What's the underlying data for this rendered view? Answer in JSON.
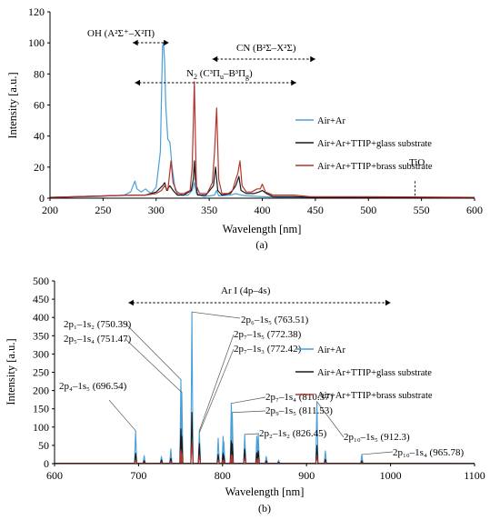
{
  "chart_data": [
    {
      "id": "a",
      "type": "line",
      "caption": "(a)",
      "xlabel": "Wavelength [nm]",
      "ylabel": "Intensity [a.u.]",
      "xlim": [
        200,
        600
      ],
      "ylim": [
        0,
        120
      ],
      "xticks": [
        200,
        250,
        300,
        350,
        400,
        450,
        500,
        550,
        600
      ],
      "yticks": [
        0,
        20,
        40,
        60,
        80,
        100,
        120
      ],
      "legend_position": "right",
      "series": [
        {
          "name": "Air+Ar",
          "color": "#4a9fd8",
          "points": [
            [
              200,
              0.5
            ],
            [
              240,
              1
            ],
            [
              270,
              2
            ],
            [
              276,
              4
            ],
            [
              280,
              11
            ],
            [
              282,
              6
            ],
            [
              286,
              4
            ],
            [
              290,
              6
            ],
            [
              295,
              3
            ],
            [
              300,
              7
            ],
            [
              304,
              30
            ],
            [
              306,
              98
            ],
            [
              307,
              100
            ],
            [
              308,
              88
            ],
            [
              309,
              60
            ],
            [
              311,
              38
            ],
            [
              313,
              36
            ],
            [
              315,
              20
            ],
            [
              318,
              5
            ],
            [
              325,
              2
            ],
            [
              330,
              2
            ],
            [
              334,
              5
            ],
            [
              336,
              10
            ],
            [
              338,
              3
            ],
            [
              345,
              1
            ],
            [
              355,
              2
            ],
            [
              357,
              5
            ],
            [
              359,
              1.5
            ],
            [
              370,
              2
            ],
            [
              375,
              3
            ],
            [
              380,
              2
            ],
            [
              385,
              1.5
            ],
            [
              400,
              1
            ],
            [
              420,
              0.5
            ],
            [
              450,
              0.3
            ],
            [
              500,
              0.3
            ],
            [
              550,
              0.2
            ],
            [
              600,
              0.2
            ]
          ]
        },
        {
          "name": "Air+Ar+TTIP+glass substrate",
          "color": "#1a1a1a",
          "points": [
            [
              200,
              0.5
            ],
            [
              280,
              2
            ],
            [
              290,
              2
            ],
            [
              300,
              4
            ],
            [
              306,
              8
            ],
            [
              308,
              10
            ],
            [
              310,
              5
            ],
            [
              313,
              8
            ],
            [
              316,
              5
            ],
            [
              320,
              2
            ],
            [
              326,
              2
            ],
            [
              333,
              5
            ],
            [
              335,
              12
            ],
            [
              336,
              24
            ],
            [
              337,
              12
            ],
            [
              339,
              2
            ],
            [
              347,
              2
            ],
            [
              354,
              8
            ],
            [
              356,
              20
            ],
            [
              358,
              5
            ],
            [
              362,
              2
            ],
            [
              370,
              3
            ],
            [
              375,
              8
            ],
            [
              378,
              14
            ],
            [
              380,
              5
            ],
            [
              385,
              3
            ],
            [
              392,
              3
            ],
            [
              397,
              4
            ],
            [
              400,
              5
            ],
            [
              404,
              3
            ],
            [
              410,
              1
            ],
            [
              430,
              1
            ],
            [
              450,
              0.5
            ],
            [
              500,
              0.4
            ],
            [
              600,
              0.3
            ]
          ]
        },
        {
          "name": "Air+Ar+TTIP+brass substrate",
          "color": "#b5352a",
          "points": [
            [
              200,
              0.5
            ],
            [
              280,
              2
            ],
            [
              290,
              2
            ],
            [
              300,
              3
            ],
            [
              305,
              5
            ],
            [
              308,
              8
            ],
            [
              311,
              5
            ],
            [
              314,
              24
            ],
            [
              316,
              10
            ],
            [
              320,
              3
            ],
            [
              326,
              3
            ],
            [
              332,
              5
            ],
            [
              334,
              20
            ],
            [
              336,
              75
            ],
            [
              337,
              40
            ],
            [
              338,
              8
            ],
            [
              341,
              3
            ],
            [
              348,
              3
            ],
            [
              353,
              10
            ],
            [
              355,
              30
            ],
            [
              357,
              58
            ],
            [
              359,
              12
            ],
            [
              362,
              3
            ],
            [
              368,
              3
            ],
            [
              372,
              5
            ],
            [
              375,
              12
            ],
            [
              377,
              16
            ],
            [
              379,
              24
            ],
            [
              381,
              8
            ],
            [
              385,
              4
            ],
            [
              390,
              4
            ],
            [
              395,
              6
            ],
            [
              398,
              6
            ],
            [
              400,
              9
            ],
            [
              403,
              4
            ],
            [
              410,
              2
            ],
            [
              420,
              2
            ],
            [
              430,
              2
            ],
            [
              445,
              1
            ],
            [
              500,
              1
            ],
            [
              600,
              0.5
            ]
          ]
        }
      ],
      "annotations": {
        "oh_label": "OH (A²Σ⁺–X²Π)",
        "cn_label": "CN (B²Σ–X²Σ)",
        "n2_label_main": "N",
        "n2_label_sub": "2",
        "n2_label_rest": " (C³Π",
        "n2_label_sub2": "u",
        "n2_label_mid": "–B³Π",
        "n2_label_sub3": "g",
        "n2_label_end": ")",
        "tio_label": "TiO",
        "oh_range": [
          278,
          312
        ],
        "cn_range": [
          353,
          450
        ],
        "n2_range": [
          280,
          432
        ],
        "tio_x": 544,
        "tio_top": 11
      }
    },
    {
      "id": "b",
      "type": "line",
      "caption": "(b)",
      "xlabel": "Wavelength [nm]",
      "ylabel": "Intensity [a.u.]",
      "xlim": [
        600,
        1100
      ],
      "ylim": [
        0,
        500
      ],
      "xticks": [
        600,
        700,
        800,
        900,
        1000,
        1100
      ],
      "yticks": [
        0,
        50,
        100,
        150,
        200,
        250,
        300,
        350,
        400,
        450,
        500
      ],
      "legend_position": "right",
      "series": [
        {
          "name": "Air+Ar",
          "color": "#4a9fd8",
          "lines": [
            [
              696.54,
              90
            ],
            [
              706.7,
              22
            ],
            [
              727.3,
              20
            ],
            [
              738.4,
              40
            ],
            [
              750.39,
              230
            ],
            [
              751.47,
              195
            ],
            [
              763.51,
              415
            ],
            [
              772.38,
              90
            ],
            [
              772.42,
              85
            ],
            [
              794.8,
              70
            ],
            [
              800.6,
              75
            ],
            [
              801.5,
              60
            ],
            [
              810.37,
              165
            ],
            [
              811.53,
              140
            ],
            [
              826.45,
              80
            ],
            [
              840.8,
              75
            ],
            [
              842.5,
              80
            ],
            [
              852.1,
              20
            ],
            [
              866.8,
              10
            ],
            [
              912.3,
              170
            ],
            [
              922.4,
              35
            ],
            [
              965.78,
              25
            ]
          ]
        },
        {
          "name": "Air+Ar+TTIP+glass substrate",
          "color": "#1a1a1a",
          "lines": [
            [
              696.54,
              28
            ],
            [
              706.7,
              8
            ],
            [
              727.3,
              10
            ],
            [
              738.4,
              15
            ],
            [
              750.39,
              95
            ],
            [
              751.47,
              75
            ],
            [
              763.51,
              140
            ],
            [
              772.38,
              55
            ],
            [
              772.42,
              50
            ],
            [
              794.8,
              25
            ],
            [
              800.6,
              28
            ],
            [
              801.5,
              22
            ],
            [
              810.37,
              62
            ],
            [
              811.53,
              55
            ],
            [
              826.45,
              40
            ],
            [
              840.8,
              30
            ],
            [
              842.5,
              35
            ],
            [
              852.1,
              8
            ],
            [
              866.8,
              4
            ],
            [
              912.3,
              50
            ],
            [
              922.4,
              12
            ],
            [
              965.78,
              8
            ]
          ]
        },
        {
          "name": "Air+Ar+TTIP+brass substrate",
          "color": "#b5352a",
          "lines": [
            [
              696.54,
              10
            ],
            [
              706.7,
              3
            ],
            [
              727.3,
              4
            ],
            [
              738.4,
              6
            ],
            [
              750.39,
              38
            ],
            [
              751.47,
              30
            ],
            [
              763.51,
              55
            ],
            [
              772.38,
              22
            ],
            [
              772.42,
              20
            ],
            [
              794.8,
              10
            ],
            [
              800.6,
              10
            ],
            [
              801.5,
              8
            ],
            [
              810.37,
              25
            ],
            [
              811.53,
              22
            ],
            [
              826.45,
              16
            ],
            [
              840.8,
              12
            ],
            [
              842.5,
              14
            ],
            [
              852.1,
              3
            ],
            [
              866.8,
              2
            ],
            [
              912.3,
              20
            ],
            [
              922.4,
              5
            ],
            [
              965.78,
              3
            ]
          ]
        }
      ],
      "annotations": {
        "ar_label": "Ar I (4p–4s)",
        "ar_range": [
          688,
          1000
        ],
        "peak_labels": [
          {
            "label": "2p₁–1s₂ (750.39)",
            "x": 750.39,
            "y": 230
          },
          {
            "label": "2p₅–1s₄ (751.47)",
            "x": 751.47,
            "y": 195
          },
          {
            "label": "2p₄–1s₅ (696.54)",
            "x": 696.54,
            "y": 90
          },
          {
            "label": "2p₆–1s₅ (763.51)",
            "x": 763.51,
            "y": 415
          },
          {
            "label": "2p₇–1s₅ (772.38)",
            "x": 772.38,
            "y": 90
          },
          {
            "label": "2p₇–1s₃ (772.42)",
            "x": 772.42,
            "y": 85
          },
          {
            "label": "2p₇–1s₄ (810.37)",
            "x": 810.37,
            "y": 165
          },
          {
            "label": "2p₉–1s₅ (811.53)",
            "x": 811.53,
            "y": 140
          },
          {
            "label": "2p₂–1s₂ (826.45)",
            "x": 826.45,
            "y": 80
          },
          {
            "label": "2p₁₀–1s₅ (912.3)",
            "x": 912.3,
            "y": 170
          },
          {
            "label": "2p₁₀–1s₄ (965.78)",
            "x": 965.78,
            "y": 25
          }
        ]
      }
    }
  ]
}
